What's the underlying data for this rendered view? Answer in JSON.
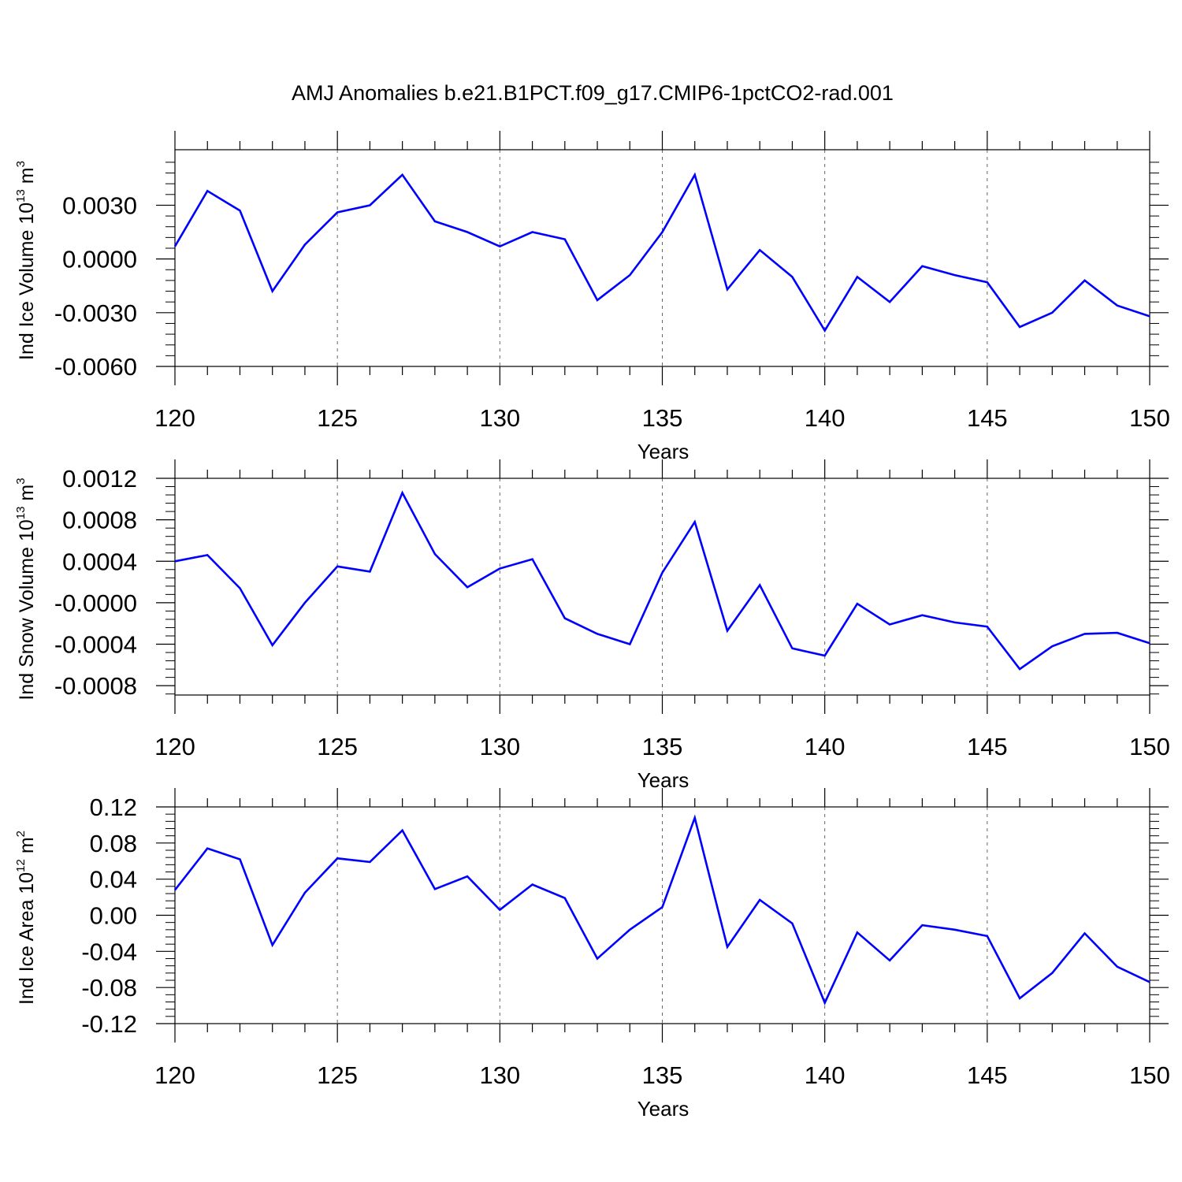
{
  "figure": {
    "title": "AMJ Anomalies b.e21.B1PCT.f09_g17.CMIP6-1pctCO2-rad.001"
  },
  "colors": {
    "line": "#0000ff",
    "axis": "#000000",
    "grid": "#666666"
  },
  "chart_data": [
    {
      "type": "line",
      "xlabel": "Years",
      "ylabel_parts": [
        "Ind Ice Volume 10",
        "13",
        " m",
        "3"
      ],
      "xlim": [
        120,
        150
      ],
      "ylim": [
        -0.006,
        0.0061
      ],
      "x_ticks": [
        "120",
        "125",
        "130",
        "135",
        "140",
        "145",
        "150"
      ],
      "y_ticks": [
        "0.0030",
        "0.0000",
        "-0.0030",
        "-0.0060"
      ],
      "y_tick_values": [
        0.003,
        0.0,
        -0.003,
        -0.006
      ],
      "grid": "vertical dashed at x ticks",
      "x": [
        120,
        121,
        122,
        123,
        124,
        125,
        126,
        127,
        128,
        129,
        130,
        131,
        132,
        133,
        134,
        135,
        136,
        137,
        138,
        139,
        140,
        141,
        142,
        143,
        144,
        145,
        146,
        147,
        148,
        149,
        150
      ],
      "series": [
        {
          "values": [
            0.0007,
            0.0038,
            0.0027,
            -0.0018,
            0.0008,
            0.0026,
            0.003,
            0.0047,
            0.0021,
            0.0015,
            0.0007,
            0.0015,
            0.0011,
            -0.0023,
            -0.0009,
            0.0015,
            0.0047,
            -0.0017,
            0.0005,
            -0.001,
            -0.004,
            -0.001,
            -0.0024,
            -0.0004,
            -0.0009,
            -0.0013,
            -0.0038,
            -0.003,
            -0.0012,
            -0.0026,
            -0.0032
          ]
        }
      ]
    },
    {
      "type": "line",
      "xlabel": "Years",
      "ylabel_parts": [
        "Ind Snow Volume 10",
        "13",
        " m",
        "3"
      ],
      "xlim": [
        120,
        150
      ],
      "ylim": [
        -0.00089,
        0.0012
      ],
      "x_ticks": [
        "120",
        "125",
        "130",
        "135",
        "140",
        "145",
        "150"
      ],
      "y_ticks": [
        "0.0012",
        "0.0008",
        "0.0004",
        "-0.0000",
        "-0.0004",
        "-0.0008"
      ],
      "y_tick_values": [
        0.0012,
        0.0008,
        0.0004,
        0.0,
        -0.0004,
        -0.0008
      ],
      "grid": "vertical dashed at x ticks",
      "x": [
        120,
        121,
        122,
        123,
        124,
        125,
        126,
        127,
        128,
        129,
        130,
        131,
        132,
        133,
        134,
        135,
        136,
        137,
        138,
        139,
        140,
        141,
        142,
        143,
        144,
        145,
        146,
        147,
        148,
        149,
        150
      ],
      "series": [
        {
          "values": [
            0.0004,
            0.00046,
            0.00014,
            -0.00041,
            0.0,
            0.00035,
            0.0003,
            0.00106,
            0.00047,
            0.00015,
            0.00033,
            0.00042,
            -0.00015,
            -0.0003,
            -0.0004,
            0.00029,
            0.00078,
            -0.00027,
            0.00017,
            -0.00044,
            -0.00051,
            -1e-05,
            -0.00021,
            -0.00012,
            -0.00019,
            -0.00023,
            -0.00064,
            -0.00042,
            -0.0003,
            -0.00029,
            -0.00039
          ]
        }
      ]
    },
    {
      "type": "line",
      "xlabel": "Years",
      "ylabel_parts": [
        "Ind Ice Area 10",
        "12",
        " m",
        "2"
      ],
      "xlim": [
        120,
        150
      ],
      "ylim": [
        -0.12,
        0.12
      ],
      "x_ticks": [
        "120",
        "125",
        "130",
        "135",
        "140",
        "145",
        "150"
      ],
      "y_ticks": [
        "0.12",
        "0.08",
        "0.04",
        "0.00",
        "-0.04",
        "-0.08",
        "-0.12"
      ],
      "y_tick_values": [
        0.12,
        0.08,
        0.04,
        0.0,
        -0.04,
        -0.08,
        -0.12
      ],
      "grid": "vertical dashed at x ticks",
      "x": [
        120,
        121,
        122,
        123,
        124,
        125,
        126,
        127,
        128,
        129,
        130,
        131,
        132,
        133,
        134,
        135,
        136,
        137,
        138,
        139,
        140,
        141,
        142,
        143,
        144,
        145,
        146,
        147,
        148,
        149,
        150
      ],
      "series": [
        {
          "values": [
            0.028,
            0.074,
            0.062,
            -0.033,
            0.025,
            0.063,
            0.059,
            0.094,
            0.029,
            0.043,
            0.006,
            0.034,
            0.019,
            -0.048,
            -0.016,
            0.009,
            0.108,
            -0.035,
            0.017,
            -0.009,
            -0.097,
            -0.019,
            -0.05,
            -0.011,
            -0.016,
            -0.023,
            -0.092,
            -0.064,
            -0.02,
            -0.057,
            -0.074
          ]
        }
      ]
    }
  ]
}
